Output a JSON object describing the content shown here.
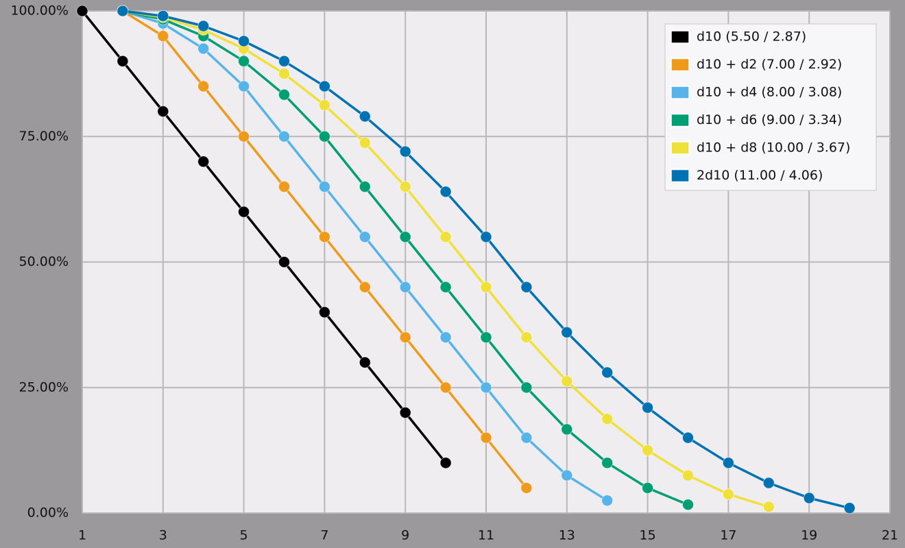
{
  "chart_data": {
    "type": "line",
    "xlim": [
      1,
      21
    ],
    "xticks": [
      1,
      3,
      5,
      7,
      9,
      11,
      13,
      15,
      17,
      19,
      21
    ],
    "ylim": [
      0,
      100
    ],
    "yticks": [
      {
        "value": 0,
        "label": "0.00%"
      },
      {
        "value": 25,
        "label": "25.00%"
      },
      {
        "value": 50,
        "label": "50.00%"
      },
      {
        "value": 75,
        "label": "75.00%"
      },
      {
        "value": 100,
        "label": "100.00%"
      }
    ],
    "grid": true,
    "legend": "top-right",
    "series": [
      {
        "name": "d10 (5.50 / 2.87)",
        "color": "#000000",
        "x": [
          1,
          2,
          3,
          4,
          5,
          6,
          7,
          8,
          9,
          10
        ],
        "values": [
          100,
          90,
          80,
          70,
          60,
          50,
          40,
          30,
          20,
          10
        ]
      },
      {
        "name": "d10 + d2 (7.00 / 2.92)",
        "color": "#ee9a1a",
        "x": [
          2,
          3,
          4,
          5,
          6,
          7,
          8,
          9,
          10,
          11,
          12
        ],
        "values": [
          100,
          95,
          85,
          75,
          65,
          55,
          45,
          35,
          25,
          15,
          5
        ]
      },
      {
        "name": "d10 + d4 (8.00 / 3.08)",
        "color": "#56b4e9",
        "x": [
          2,
          3,
          4,
          5,
          6,
          7,
          8,
          9,
          10,
          11,
          12,
          13,
          14
        ],
        "values": [
          100,
          97.5,
          92.5,
          85,
          75,
          65,
          55,
          45,
          35,
          25,
          15,
          7.5,
          2.5
        ]
      },
      {
        "name": "d10 + d6 (9.00 / 3.34)",
        "color": "#009e73",
        "x": [
          2,
          3,
          4,
          5,
          6,
          7,
          8,
          9,
          10,
          11,
          12,
          13,
          14,
          15,
          16
        ],
        "values": [
          100,
          98.33,
          95,
          90,
          83.33,
          75,
          65,
          55,
          45,
          35,
          25,
          16.67,
          10,
          5,
          1.67
        ]
      },
      {
        "name": "d10 + d8 (10.00 / 3.67)",
        "color": "#f0e03a",
        "x": [
          2,
          3,
          4,
          5,
          6,
          7,
          8,
          9,
          10,
          11,
          12,
          13,
          14,
          15,
          16,
          17,
          18
        ],
        "values": [
          100,
          98.75,
          96.25,
          92.5,
          87.5,
          81.25,
          73.75,
          65,
          55,
          45,
          35,
          26.25,
          18.75,
          12.5,
          7.5,
          3.75,
          1.25
        ]
      },
      {
        "name": "2d10 (11.00 / 4.06)",
        "color": "#0072b2",
        "x": [
          2,
          3,
          4,
          5,
          6,
          7,
          8,
          9,
          10,
          11,
          12,
          13,
          14,
          15,
          16,
          17,
          18,
          19,
          20
        ],
        "values": [
          100,
          99,
          97,
          94,
          90,
          85,
          79,
          72,
          64,
          55,
          45,
          36,
          28,
          21,
          15,
          10,
          6,
          3,
          1
        ]
      }
    ]
  }
}
